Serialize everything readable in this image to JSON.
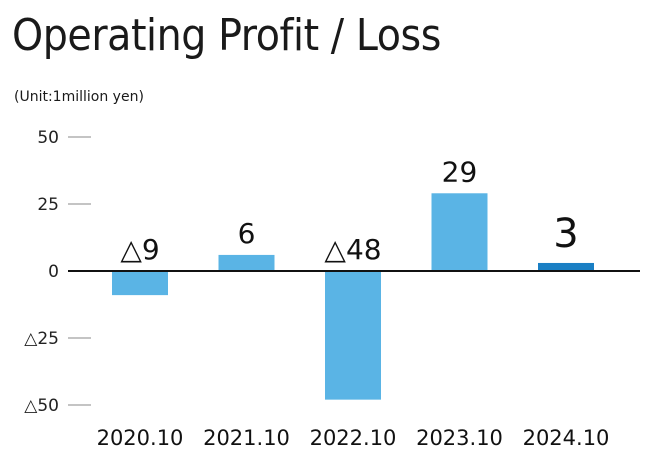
{
  "title": "Operating Profit / Loss",
  "unit": "(Unit:1million yen)",
  "chart_data": {
    "type": "bar",
    "title": "Operating Profit / Loss",
    "ylabel": "(Unit:1million yen)",
    "xlabel": "",
    "categories": [
      "2020.10",
      "2021.10",
      "2022.10",
      "2023.10",
      "2024.10"
    ],
    "values": [
      -9,
      6,
      -48,
      29,
      3
    ],
    "data_labels": [
      "△9",
      "6",
      "△48",
      "29",
      "3"
    ],
    "ylim": [
      -50,
      50
    ],
    "yticks": [
      50,
      25,
      0,
      -25,
      -50
    ],
    "ytick_labels": [
      "50",
      "25",
      "0",
      "△25",
      "△50"
    ],
    "grid": false,
    "legend": "none",
    "colors": {
      "bar": "#5ab4e5",
      "highlight": "#1a7fc4",
      "axis": "#111111",
      "tick": "#888888"
    },
    "highlight_index": 4
  }
}
